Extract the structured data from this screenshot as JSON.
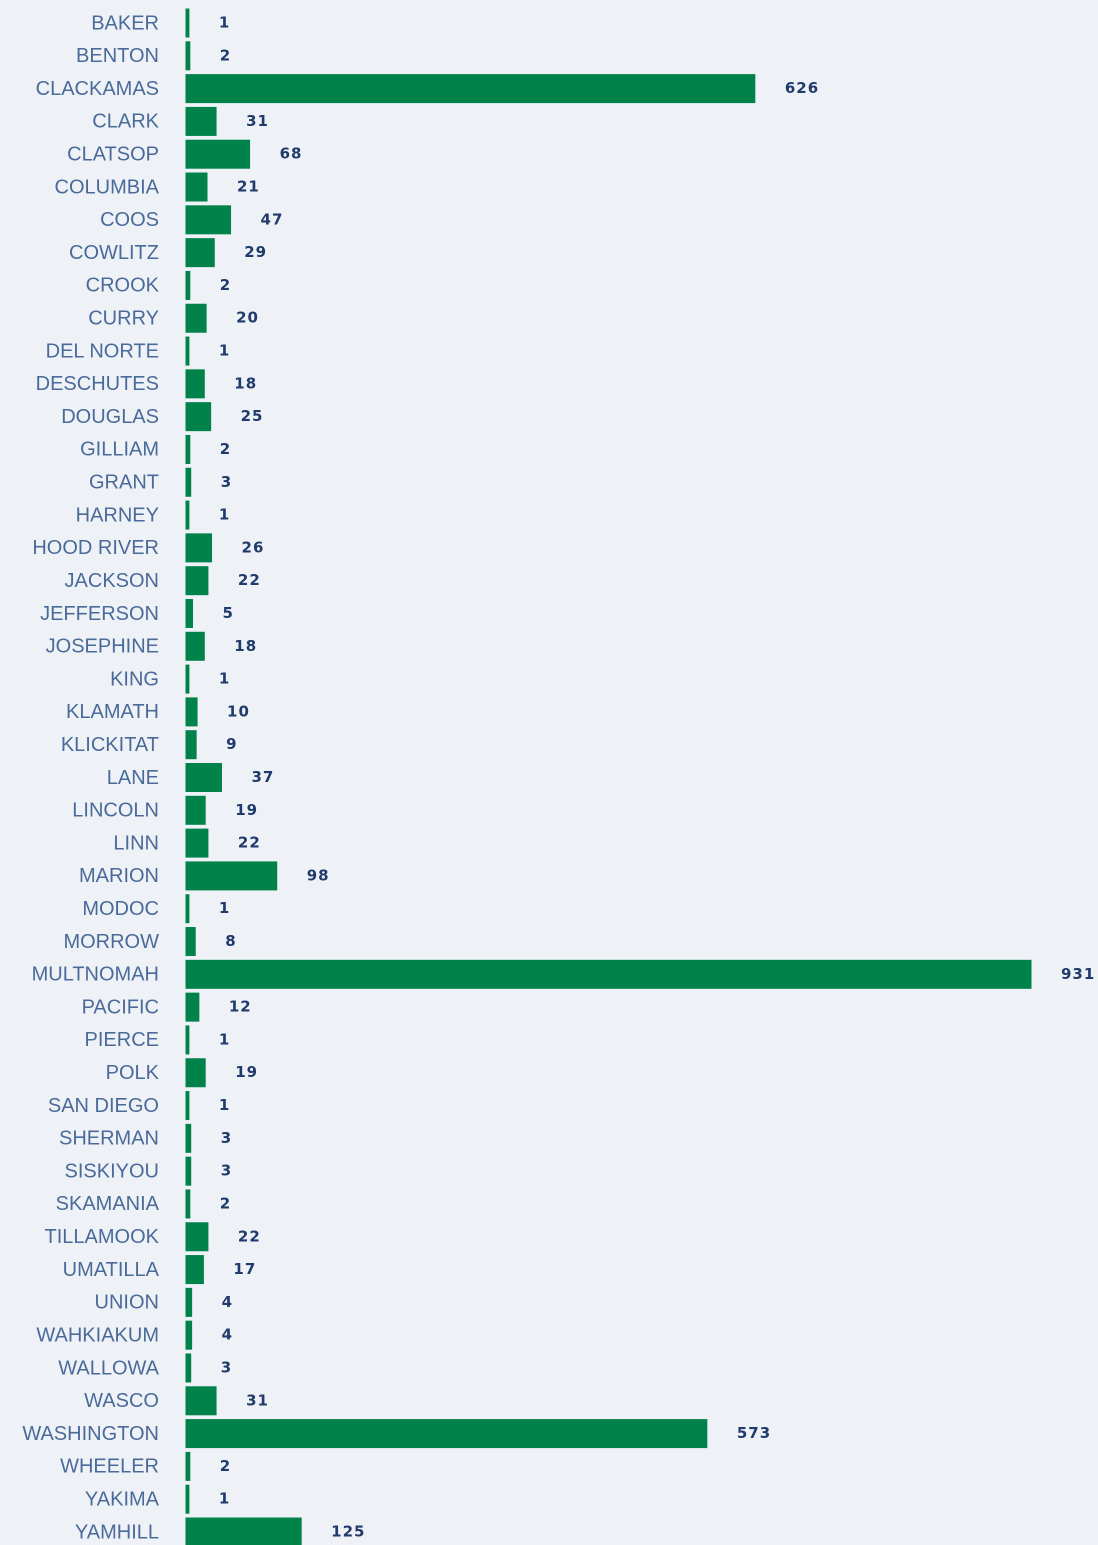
{
  "chart_data": {
    "type": "bar",
    "orientation": "horizontal",
    "color": "#00824a",
    "categories": [
      "BAKER",
      "BENTON",
      "CLACKAMAS",
      "CLARK",
      "CLATSOP",
      "COLUMBIA",
      "COOS",
      "COWLITZ",
      "CROOK",
      "CURRY",
      "DEL NORTE",
      "DESCHUTES",
      "DOUGLAS",
      "GILLIAM",
      "GRANT",
      "HARNEY",
      "HOOD RIVER",
      "JACKSON",
      "JEFFERSON",
      "JOSEPHINE",
      "KING",
      "KLAMATH",
      "KLICKITAT",
      "LANE",
      "LINCOLN",
      "LINN",
      "MARION",
      "MODOC",
      "MORROW",
      "MULTNOMAH",
      "PACIFIC",
      "PIERCE",
      "POLK",
      "SAN DIEGO",
      "SHERMAN",
      "SISKIYOU",
      "SKAMANIA",
      "TILLAMOOK",
      "UMATILLA",
      "UNION",
      "WAHKIAKUM",
      "WALLOWA",
      "WASCO",
      "WASHINGTON",
      "WHEELER",
      "YAKIMA",
      "YAMHILL"
    ],
    "values": [
      1,
      2,
      626,
      31,
      68,
      21,
      47,
      29,
      2,
      20,
      1,
      18,
      25,
      2,
      3,
      1,
      26,
      22,
      5,
      18,
      1,
      10,
      9,
      37,
      19,
      22,
      98,
      1,
      8,
      931,
      12,
      1,
      19,
      1,
      3,
      3,
      2,
      22,
      17,
      4,
      4,
      3,
      31,
      573,
      2,
      1,
      125
    ]
  }
}
